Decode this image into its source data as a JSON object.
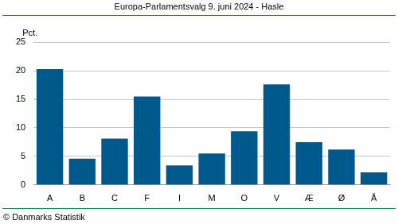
{
  "chart_data": {
    "type": "bar",
    "title": "Europa-Parlamentsvalg 9. juni 2024 - Hasle",
    "ylabel": "Pct.",
    "source": "© Danmarks Statistik",
    "categories": [
      "A",
      "B",
      "C",
      "F",
      "I",
      "M",
      "O",
      "V",
      "Æ",
      "Ø",
      "Å"
    ],
    "values": [
      20.3,
      4.6,
      8.1,
      15.5,
      3.4,
      5.5,
      9.4,
      17.6,
      7.5,
      6.2,
      2.2
    ],
    "color": "#00598c",
    "ylim": [
      0,
      25
    ],
    "yticks": [
      0,
      5,
      10,
      15,
      20,
      25
    ],
    "grid": true
  }
}
